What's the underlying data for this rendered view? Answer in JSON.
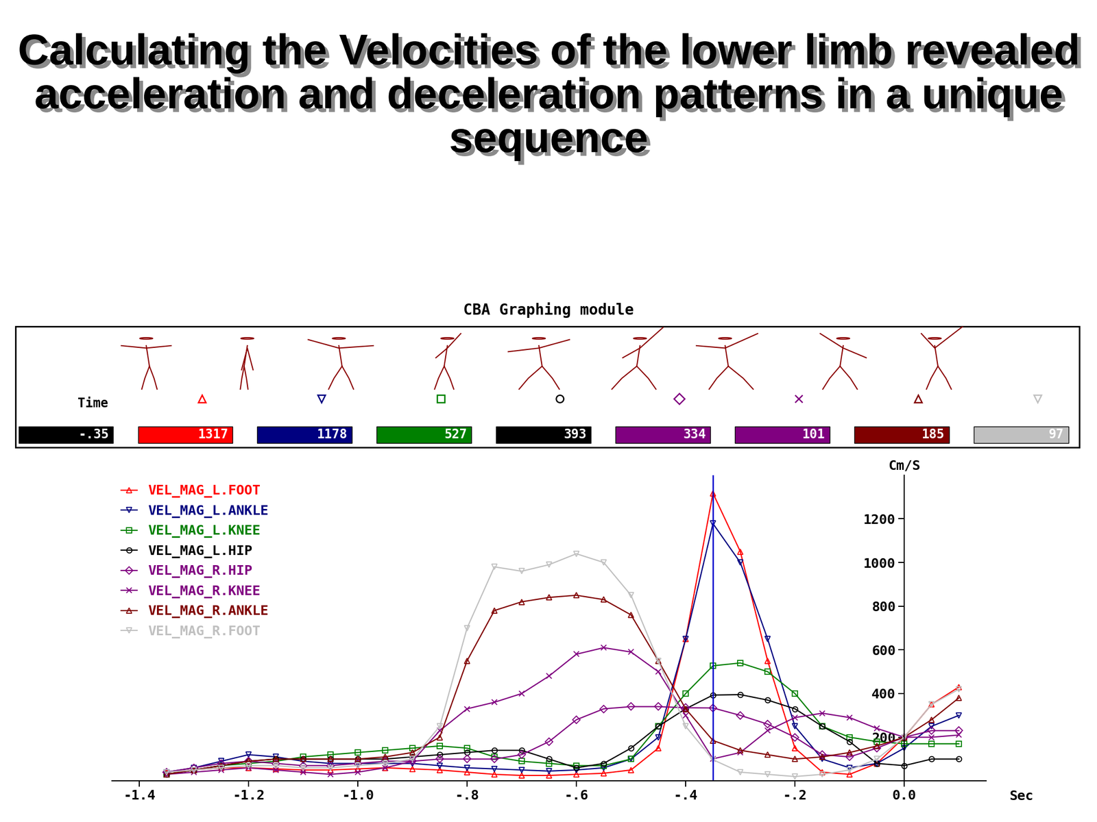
{
  "chart_data": {
    "type": "line",
    "title": "Calculating the Velocities of the lower limb revealed acceleration and deceleration patterns in a unique sequence",
    "subtitle": "CBA Graphing module",
    "x_label": "Sec",
    "y_label": "Cm/S",
    "xlim": [
      -1.45,
      0.15
    ],
    "xticks": [
      -1.4,
      -1.2,
      -1.0,
      {
        "value": -0.8,
        "label": "-.8"
      },
      {
        "value": -0.6,
        "label": "-.6"
      },
      {
        "value": -0.4,
        "label": "-.4"
      },
      {
        "value": -0.2,
        "label": "-.2"
      },
      0.0
    ],
    "ylim": [
      0,
      1400
    ],
    "yticks": [
      200,
      400,
      600,
      800,
      1000,
      1200
    ],
    "grid": false,
    "legend": "upper left",
    "readout": {
      "label": "Time",
      "x": -0.35,
      "x_label": "-.35",
      "values": [
        1317,
        1178,
        527,
        393,
        334,
        101,
        185,
        97
      ]
    },
    "x": [
      -1.35,
      -1.3,
      -1.25,
      -1.2,
      -1.15,
      -1.1,
      -1.05,
      -1.0,
      -0.95,
      -0.9,
      -0.85,
      -0.8,
      -0.75,
      -0.7,
      -0.65,
      -0.6,
      -0.55,
      -0.5,
      -0.45,
      -0.4,
      -0.35,
      -0.3,
      -0.25,
      -0.2,
      -0.15,
      -0.1,
      -0.05,
      0.0,
      0.05,
      0.1
    ],
    "series": [
      {
        "name": "VEL_MAG_L.FOOT",
        "color": "#ff0000",
        "marker": "triangle_up",
        "values": [
          40,
          50,
          60,
          60,
          55,
          50,
          50,
          55,
          60,
          55,
          50,
          40,
          30,
          25,
          25,
          30,
          35,
          50,
          150,
          650,
          1317,
          1050,
          550,
          150,
          40,
          30,
          80,
          200,
          350,
          430
        ]
      },
      {
        "name": "VEL_MAG_L.ANKLE",
        "color": "#000080",
        "marker": "triangle_down",
        "values": [
          40,
          60,
          90,
          120,
          110,
          90,
          80,
          80,
          80,
          80,
          70,
          60,
          55,
          50,
          45,
          50,
          60,
          100,
          200,
          650,
          1178,
          1000,
          650,
          250,
          100,
          60,
          80,
          150,
          250,
          300
        ]
      },
      {
        "name": "VEL_MAG_L.KNEE",
        "color": "#008000",
        "marker": "square",
        "values": [
          30,
          50,
          70,
          80,
          90,
          110,
          120,
          130,
          140,
          150,
          160,
          150,
          110,
          90,
          80,
          70,
          70,
          100,
          250,
          400,
          527,
          540,
          500,
          400,
          250,
          200,
          180,
          170,
          170,
          170
        ]
      },
      {
        "name": "VEL_MAG_L.HIP",
        "color": "#000000",
        "marker": "circle",
        "values": [
          30,
          50,
          70,
          90,
          100,
          100,
          100,
          100,
          100,
          110,
          120,
          130,
          140,
          140,
          100,
          60,
          80,
          150,
          250,
          330,
          393,
          395,
          370,
          330,
          250,
          180,
          80,
          70,
          100,
          100
        ]
      },
      {
        "name": "VEL_MAG_R.HIP",
        "color": "#800080",
        "marker": "diamond",
        "values": [
          40,
          60,
          80,
          90,
          80,
          70,
          70,
          80,
          90,
          90,
          100,
          100,
          100,
          120,
          180,
          280,
          330,
          340,
          340,
          335,
          334,
          300,
          260,
          200,
          120,
          110,
          150,
          200,
          230,
          230
        ]
      },
      {
        "name": "VEL_MAG_R.KNEE",
        "color": "#800080",
        "marker": "hourglass",
        "values": [
          30,
          40,
          50,
          60,
          50,
          40,
          30,
          40,
          60,
          90,
          230,
          330,
          360,
          400,
          480,
          580,
          610,
          590,
          500,
          300,
          101,
          130,
          230,
          290,
          310,
          290,
          240,
          200,
          200,
          210
        ]
      },
      {
        "name": "VEL_MAG_R.ANKLE",
        "color": "#800000",
        "marker": "triangle_up",
        "values": [
          30,
          50,
          70,
          90,
          100,
          100,
          100,
          100,
          110,
          130,
          200,
          550,
          780,
          820,
          840,
          850,
          830,
          760,
          550,
          330,
          185,
          140,
          120,
          100,
          110,
          130,
          160,
          200,
          280,
          380
        ]
      },
      {
        "name": "VEL_MAG_R.FOOT",
        "color": "#c0c0c0",
        "marker": "triangle_down",
        "values": [
          40,
          50,
          60,
          70,
          70,
          60,
          60,
          70,
          80,
          100,
          250,
          700,
          980,
          960,
          990,
          1040,
          1000,
          850,
          550,
          250,
          97,
          40,
          30,
          20,
          30,
          50,
          100,
          200,
          350,
          420
        ]
      }
    ]
  }
}
